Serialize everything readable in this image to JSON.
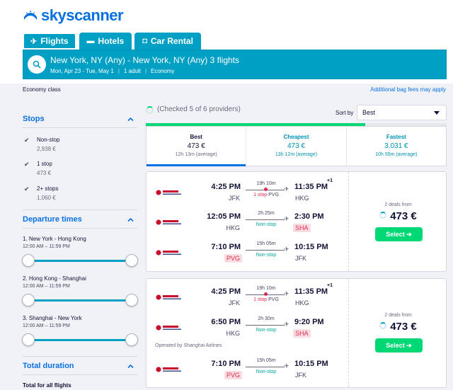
{
  "brand": {
    "name": "skyscanner",
    "color": "#0770e3"
  },
  "tabs": [
    {
      "label": "Flights",
      "icon": "plane-icon",
      "active": true
    },
    {
      "label": "Hotels",
      "icon": "bed-icon",
      "active": false
    },
    {
      "label": "Car Rental",
      "icon": "car-icon",
      "active": false
    }
  ],
  "search": {
    "route": "New York, NY (Any) - New York, NY (Any) 3 flights",
    "dates": "Mon, Apr 23 - Tue, May 1",
    "travellers": "1 adult",
    "cabin": "Economy"
  },
  "topline": {
    "left": "Economy class",
    "right": "Additional bag fees may apply"
  },
  "filters": {
    "stops": {
      "title": "Stops",
      "options": [
        {
          "label": "Non-stop",
          "price": "2,938 €",
          "checked": true
        },
        {
          "label": "1 stop",
          "price": "473 €",
          "checked": true
        },
        {
          "label": "2+ stops",
          "price": "1,060 €",
          "checked": true
        }
      ]
    },
    "departure": {
      "title": "Departure times",
      "legs": [
        {
          "label": "1. New York - Hong Kong",
          "range": "12:00 AM – 11:59 PM"
        },
        {
          "label": "2. Hong Kong - Shanghai",
          "range": "12:00 AM – 11:59 PM"
        },
        {
          "label": "3. Shanghai - New York",
          "range": "12:00 AM – 11:59 PM"
        }
      ]
    },
    "duration": {
      "title": "Total duration",
      "subtitle": "Total for all flights"
    }
  },
  "progress": {
    "text": "(Checked 5 of 6 providers)",
    "fraction": 0.73
  },
  "sort": {
    "label": "Sort by",
    "value": "Best"
  },
  "summary": [
    {
      "title": "Best",
      "price": "473 €",
      "duration": "12h 13m (average)",
      "active": true
    },
    {
      "title": "Cheapest",
      "price": "473 €",
      "duration": "13h 12m (average)",
      "active": false
    },
    {
      "title": "Fastest",
      "price": "3,031 €",
      "duration": "10h 55m (average)",
      "active": false
    }
  ],
  "results": [
    {
      "deals": "2 deals from",
      "price": "473 €",
      "button": "Select ➔",
      "operated": "",
      "legs": [
        {
          "dep_time": "4:25 PM",
          "dep_ap": "JFK",
          "arr_time": "11:35 PM",
          "arr_ap": "HKG",
          "duration": "19h 10m",
          "stops": "1 stop",
          "via": "PVG",
          "plus": "+1",
          "dep_warn": false,
          "arr_warn": false
        },
        {
          "dep_time": "12:05 PM",
          "dep_ap": "HKG",
          "arr_time": "2:30 PM",
          "arr_ap": "SHA",
          "duration": "2h 25m",
          "stops": "Non-stop",
          "via": "",
          "plus": "",
          "dep_warn": false,
          "arr_warn": true
        },
        {
          "dep_time": "7:10 PM",
          "dep_ap": "PVG",
          "arr_time": "10:15 PM",
          "arr_ap": "JFK",
          "duration": "15h 05m",
          "stops": "Non-stop",
          "via": "",
          "plus": "",
          "dep_warn": true,
          "arr_warn": false
        }
      ]
    },
    {
      "deals": "2 deals from",
      "price": "473 €",
      "button": "Select ➔",
      "operated": "Operated by Shanghai Airlines",
      "legs": [
        {
          "dep_time": "4:25 PM",
          "dep_ap": "JFK",
          "arr_time": "11:35 PM",
          "arr_ap": "HKG",
          "duration": "19h 10m",
          "stops": "1 stop",
          "via": "PVG",
          "plus": "+1",
          "dep_warn": false,
          "arr_warn": false
        },
        {
          "dep_time": "6:50 PM",
          "dep_ap": "HKG",
          "arr_time": "9:20 PM",
          "arr_ap": "SHA",
          "duration": "2h 30m",
          "stops": "Non-stop",
          "via": "",
          "plus": "",
          "dep_warn": false,
          "arr_warn": true
        },
        {
          "dep_time": "7:10 PM",
          "dep_ap": "PVG",
          "arr_time": "10:15 PM",
          "arr_ap": "JFK",
          "duration": "15h 05m",
          "stops": "Non-stop",
          "via": "",
          "plus": "",
          "dep_warn": true,
          "arr_warn": false
        }
      ]
    }
  ]
}
